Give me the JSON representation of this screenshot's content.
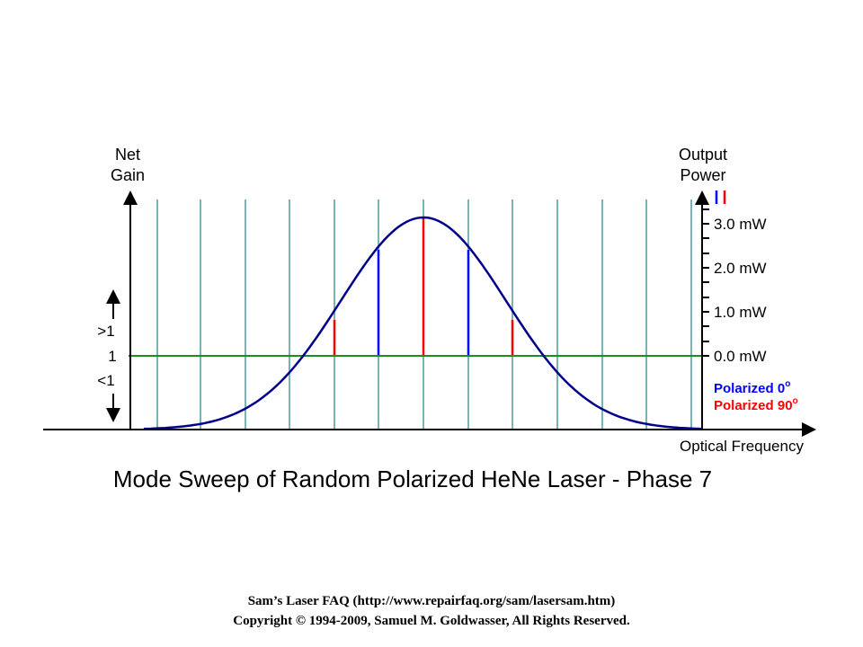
{
  "diagram": {
    "title": "Mode Sweep of Random Polarized HeNe Laser - Phase 7",
    "left_axis": {
      "label_line1": "Net",
      "label_line2": "Gain"
    },
    "right_axis": {
      "label_line1": "Output",
      "label_line2": "Power",
      "ticks": [
        "3.0 mW",
        "2.0 mW",
        "1.0 mW",
        "0.0 mW"
      ]
    },
    "gain_labels": {
      "above": ">1",
      "unity": "1",
      "below": "<1"
    },
    "x_axis_label": "Optical Frequency",
    "legend": {
      "polarized_0": "Polarized 0",
      "polarized_90": "Polarized 90",
      "degree_symbol": "o",
      "color_0": "#0000ff",
      "color_90": "#ff0000"
    },
    "colors": {
      "curve": "#00008b",
      "unity_line": "#1e8c1e",
      "mode_grid": "#78b4b4"
    }
  },
  "footer": {
    "line1": "Sam’s Laser FAQ (http://www.repairfaq.org/sam/lasersam.htm)",
    "line2": "Copyright © 1994-2009, Samuel M. Goldwasser, All Rights Reserved."
  }
}
